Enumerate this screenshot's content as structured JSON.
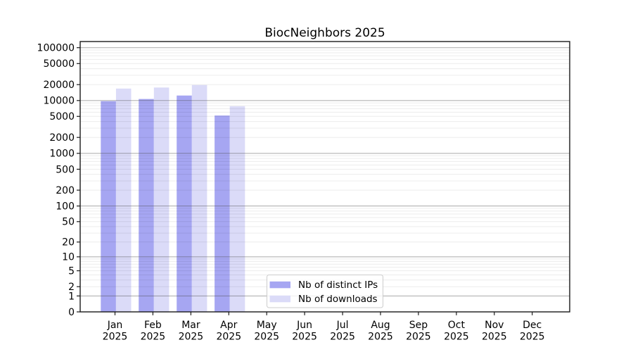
{
  "chart_data": {
    "type": "bar",
    "title": "BiocNeighbors 2025",
    "x_tick_months": [
      "Jan",
      "Feb",
      "Mar",
      "Apr",
      "May",
      "Jun",
      "Jul",
      "Aug",
      "Sep",
      "Oct",
      "Nov",
      "Dec"
    ],
    "x_tick_year": "2025",
    "series": [
      {
        "name": "Nb of distinct IPs",
        "key": "distinct-ips",
        "color": "#a6a6f2",
        "values": [
          9700,
          10700,
          12400,
          5200,
          0,
          0,
          0,
          0,
          0,
          0,
          0,
          0
        ]
      },
      {
        "name": "Nb of downloads",
        "key": "downloads",
        "color": "#dbdbf8",
        "values": [
          16800,
          17600,
          19600,
          7800,
          0,
          0,
          0,
          0,
          0,
          0,
          0,
          0
        ]
      }
    ],
    "y_ticks": [
      0,
      1,
      2,
      5,
      10,
      20,
      50,
      100,
      200,
      500,
      1000,
      2000,
      5000,
      10000,
      20000,
      50000,
      100000
    ],
    "ylim": [
      0,
      100000
    ],
    "y_scale": "log10(1+value)",
    "grid": "horizontal major (powers of 10, darker) and minor (2-9 per decade, light), drawn over translucent bars",
    "legend_position": "lower center",
    "colors": {
      "axis": "#1a1a1a",
      "major_grid": "#aaaaaa",
      "minor_grid": "#ebebeb",
      "legend_border": "#cccccc",
      "background": "#ffffff"
    }
  }
}
